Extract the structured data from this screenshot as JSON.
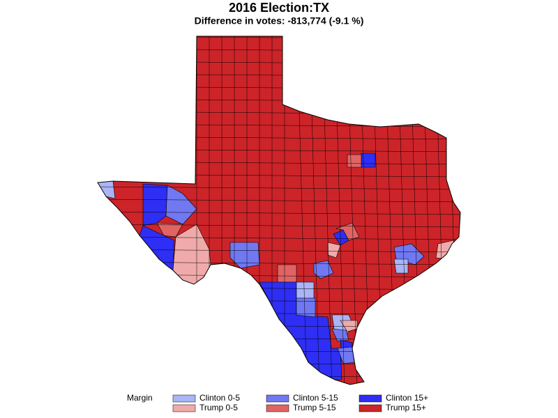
{
  "title": "2016 Election:TX",
  "subtitle": "Difference in votes: -813,774 (-9.1 %)",
  "legend": {
    "title": "Margin",
    "items": [
      {
        "label": "Clinton 0-5",
        "color": "#aab4f6"
      },
      {
        "label": "Trump 0-5",
        "color": "#f0aaaa"
      },
      {
        "label": "Clinton 5-15",
        "color": "#7078f2"
      },
      {
        "label": "Trump 5-15",
        "color": "#e06464"
      },
      {
        "label": "Clinton 15+",
        "color": "#2e2ef4"
      },
      {
        "label": "Trump 15+",
        "color": "#cc2429"
      }
    ]
  }
}
